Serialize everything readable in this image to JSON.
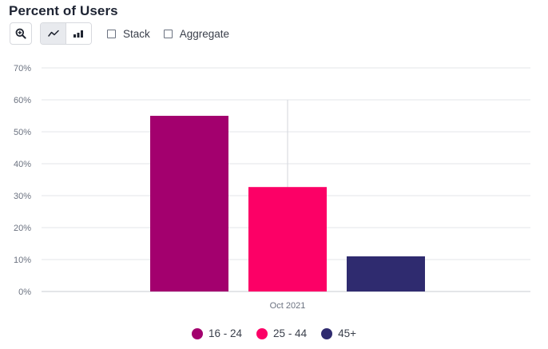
{
  "header": {
    "title": "Percent of Users"
  },
  "toolbar": {
    "zoom_icon": "zoom-in-icon",
    "views": [
      {
        "icon": "line-chart-icon",
        "active": true
      },
      {
        "icon": "bar-chart-icon",
        "active": false
      }
    ],
    "stack_label": "Stack",
    "stack_checked": false,
    "aggregate_label": "Aggregate",
    "aggregate_checked": false
  },
  "chart_data": {
    "type": "bar",
    "categories": [
      "Oct 2021"
    ],
    "series": [
      {
        "name": "16 - 24",
        "values": [
          55
        ],
        "color": "#a3006e"
      },
      {
        "name": "25 - 44",
        "values": [
          32.7
        ],
        "color": "#fc0066"
      },
      {
        "name": "45+",
        "values": [
          11
        ],
        "color": "#2f2b6f"
      }
    ],
    "y_ticks": [
      "0%",
      "10%",
      "20%",
      "30%",
      "40%",
      "50%",
      "60%",
      "70%"
    ],
    "ylim": [
      0,
      70
    ],
    "grid": true,
    "legend_position": "bottom-center",
    "hover_category": "Oct 2021"
  },
  "legend": [
    {
      "label": "16 - 24",
      "color": "#a3006e"
    },
    {
      "label": "25 - 44",
      "color": "#fc0066"
    },
    {
      "label": "45+",
      "color": "#2f2b6f"
    }
  ]
}
